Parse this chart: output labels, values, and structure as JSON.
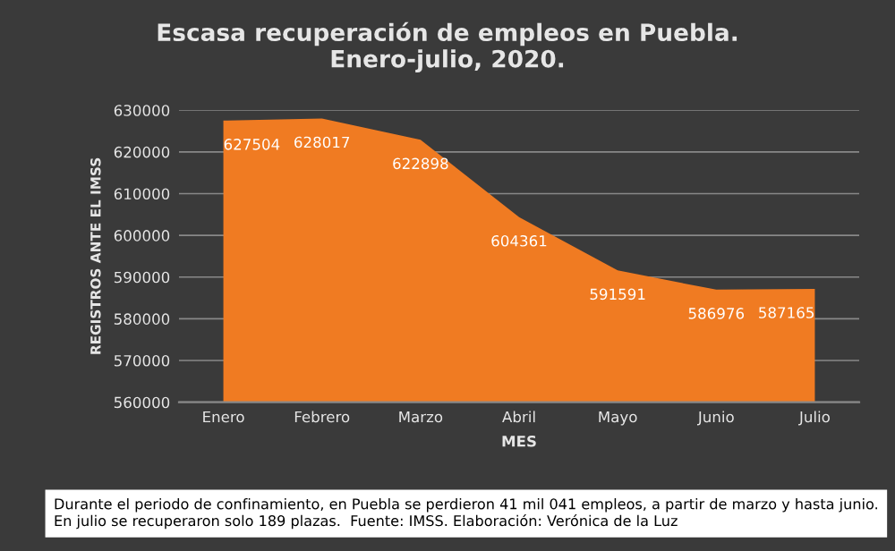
{
  "chart_data": {
    "type": "area",
    "title": "Escasa recuperación de empleos en Puebla.\nEnero-julio, 2020.",
    "xlabel": "MES",
    "ylabel": "REGISTROS ANTE EL IMSS",
    "categories": [
      "Enero",
      "Febrero",
      "Marzo",
      "Abril",
      "Mayo",
      "Junio",
      "Julio"
    ],
    "series": [
      {
        "color": "#f07b22",
        "values": [
          627504,
          628017,
          622898,
          604361,
          591591,
          586976,
          587165
        ]
      }
    ],
    "ylim": [
      560000,
      630000
    ],
    "yticks": [
      560000,
      570000,
      580000,
      590000,
      600000,
      610000,
      620000,
      630000
    ],
    "grid": "y",
    "data_labels": true,
    "annotations": [
      "Durante el periodo de confinamiento, en Puebla se perdieron 41 mil 041 empleos, a partir de marzo y hasta junio. En julio se recuperaron solo 189 plazas.  Fuente: IMSS. Elaboración: Verónica de la Luz"
    ]
  }
}
